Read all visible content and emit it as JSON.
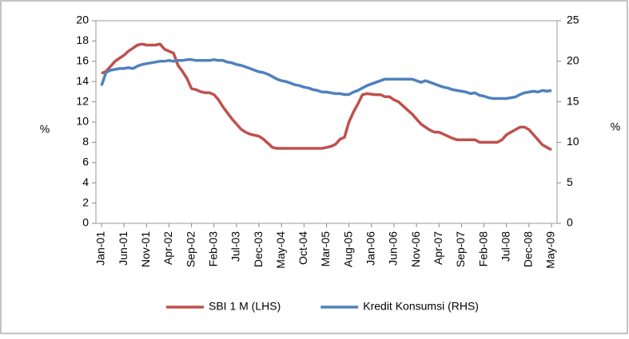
{
  "chart_data": {
    "type": "line",
    "y_label": "%",
    "y2_label": "%",
    "categories": [
      "Jan-01",
      null,
      null,
      null,
      null,
      "Jun-01",
      null,
      null,
      null,
      null,
      "Nov-01",
      null,
      null,
      null,
      null,
      "Apr-02",
      null,
      null,
      null,
      null,
      "Sep-02",
      null,
      null,
      null,
      null,
      "Feb-03",
      null,
      null,
      null,
      null,
      "Jul-03",
      null,
      null,
      null,
      null,
      "Dec-03",
      null,
      null,
      null,
      null,
      "May-04",
      null,
      null,
      null,
      null,
      "Oct-04",
      null,
      null,
      null,
      null,
      "Mar-05",
      null,
      null,
      null,
      null,
      "Aug-05",
      null,
      null,
      null,
      null,
      "Jan-06",
      null,
      null,
      null,
      null,
      "Jun-06",
      null,
      null,
      null,
      null,
      "Nov-06",
      null,
      null,
      null,
      null,
      "Apr-07",
      null,
      null,
      null,
      null,
      "Sep-07",
      null,
      null,
      null,
      null,
      "Feb-08",
      null,
      null,
      null,
      null,
      "Jul-08",
      null,
      null,
      null,
      null,
      "Dec-08",
      null,
      null,
      null,
      null,
      "May-09"
    ],
    "series": [
      {
        "name": "SBI 1 M (LHS)",
        "color": "#c0504d",
        "values": [
          14.8,
          15.0,
          15.5,
          16.0,
          16.3,
          16.6,
          17.0,
          17.3,
          17.6,
          17.7,
          17.6,
          17.6,
          17.6,
          17.7,
          17.2,
          17.0,
          16.8,
          15.6,
          15.0,
          14.3,
          13.3,
          13.2,
          13.0,
          12.9,
          12.9,
          12.7,
          12.2,
          11.5,
          10.9,
          10.3,
          9.8,
          9.3,
          9.0,
          8.8,
          8.7,
          8.6,
          8.3,
          7.9,
          7.5,
          7.4,
          7.4,
          7.4,
          7.4,
          7.4,
          7.4,
          7.4,
          7.4,
          7.4,
          7.4,
          7.4,
          7.5,
          7.6,
          7.8,
          8.3,
          8.5,
          10.0,
          11.0,
          11.8,
          12.7,
          12.8,
          12.75,
          12.7,
          12.7,
          12.5,
          12.5,
          12.2,
          12.0,
          11.6,
          11.2,
          10.8,
          10.3,
          9.8,
          9.5,
          9.2,
          9.0,
          9.0,
          8.8,
          8.6,
          8.4,
          8.25,
          8.25,
          8.25,
          8.25,
          8.25,
          8.0,
          8.0,
          8.0,
          8.0,
          8.0,
          8.25,
          8.75,
          9.0,
          9.25,
          9.5,
          9.5,
          9.25,
          8.75,
          8.25,
          7.75,
          7.5,
          7.25
        ]
      },
      {
        "name": "Kredit Konsumsi (RHS)",
        "color": "#4f81bd",
        "axis": "y2",
        "values": [
          17.0,
          18.6,
          18.9,
          19.0,
          19.1,
          19.1,
          19.2,
          19.1,
          19.4,
          19.6,
          19.7,
          19.8,
          19.9,
          20.0,
          20.0,
          20.1,
          20.0,
          20.1,
          20.1,
          20.2,
          20.2,
          20.1,
          20.1,
          20.1,
          20.1,
          20.2,
          20.1,
          20.1,
          19.9,
          19.8,
          19.6,
          19.5,
          19.3,
          19.1,
          18.9,
          18.7,
          18.6,
          18.4,
          18.1,
          17.8,
          17.6,
          17.5,
          17.3,
          17.1,
          17.0,
          16.8,
          16.7,
          16.5,
          16.4,
          16.2,
          16.2,
          16.1,
          16.0,
          16.0,
          15.9,
          15.9,
          16.2,
          16.4,
          16.7,
          17.0,
          17.2,
          17.4,
          17.6,
          17.8,
          17.8,
          17.8,
          17.8,
          17.8,
          17.8,
          17.8,
          17.6,
          17.4,
          17.6,
          17.4,
          17.2,
          17.0,
          16.8,
          16.7,
          16.5,
          16.4,
          16.3,
          16.2,
          16.0,
          16.1,
          15.8,
          15.7,
          15.5,
          15.4,
          15.4,
          15.4,
          15.4,
          15.5,
          15.6,
          15.9,
          16.1,
          16.2,
          16.3,
          16.2,
          16.4,
          16.3,
          16.4
        ]
      }
    ],
    "ylim": [
      0,
      20
    ],
    "yticks": [
      0,
      2,
      4,
      6,
      8,
      10,
      12,
      14,
      16,
      18,
      20
    ],
    "y2lim": [
      0,
      25
    ],
    "y2ticks": [
      0,
      5,
      10,
      15,
      20,
      25
    ],
    "grid": false,
    "legend": "bottom"
  }
}
